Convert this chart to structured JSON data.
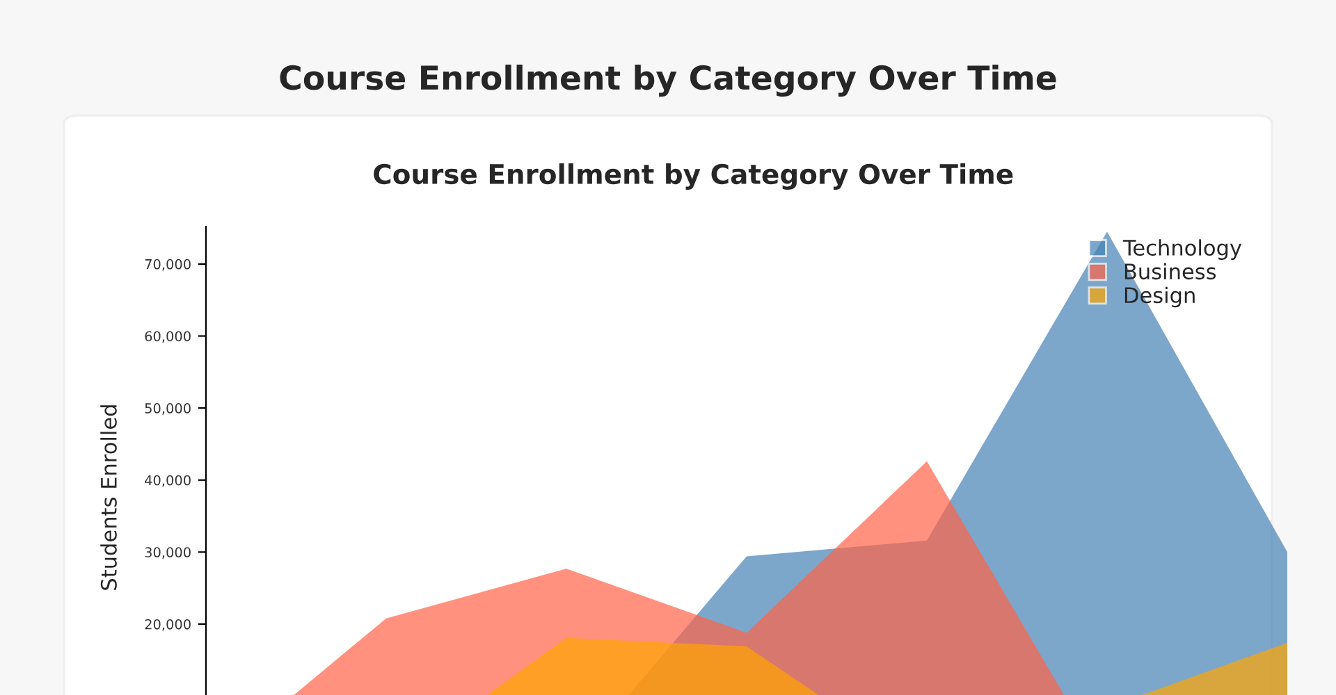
{
  "chart_data": {
    "type": "area",
    "title": "Course Enrollment by Category Over Time",
    "ylabel": "Students Enrolled",
    "categories": [
      null,
      null,
      null,
      null,
      null,
      null,
      null
    ],
    "series": [
      {
        "name": "Technology",
        "color": "#4682b4",
        "values": [
          0,
          0,
          0,
          29400,
          31600,
          74500,
          30000
        ]
      },
      {
        "name": "Business",
        "color": "#ff6347",
        "values": [
          0,
          20800,
          27700,
          18800,
          42600,
          0,
          0
        ]
      },
      {
        "name": "Design",
        "color": "#ffa500",
        "values": [
          0,
          0,
          18100,
          16900,
          0,
          8400,
          17400
        ]
      }
    ],
    "ylim": [
      0,
      75200
    ],
    "yticks": [
      {
        "value": 10000,
        "label": null
      },
      {
        "value": 20000,
        "label": "20,000"
      },
      {
        "value": 30000,
        "label": "30,000"
      },
      {
        "value": 40000,
        "label": "40,000"
      },
      {
        "value": 50000,
        "label": "50,000"
      },
      {
        "value": 60000,
        "label": "60,000"
      },
      {
        "value": 70000,
        "label": "70,000"
      }
    ],
    "grid": false,
    "legend": "top right",
    "tick_labels": "y",
    "annotations": [
      "Course Enrollment by Category Over Time"
    ]
  }
}
